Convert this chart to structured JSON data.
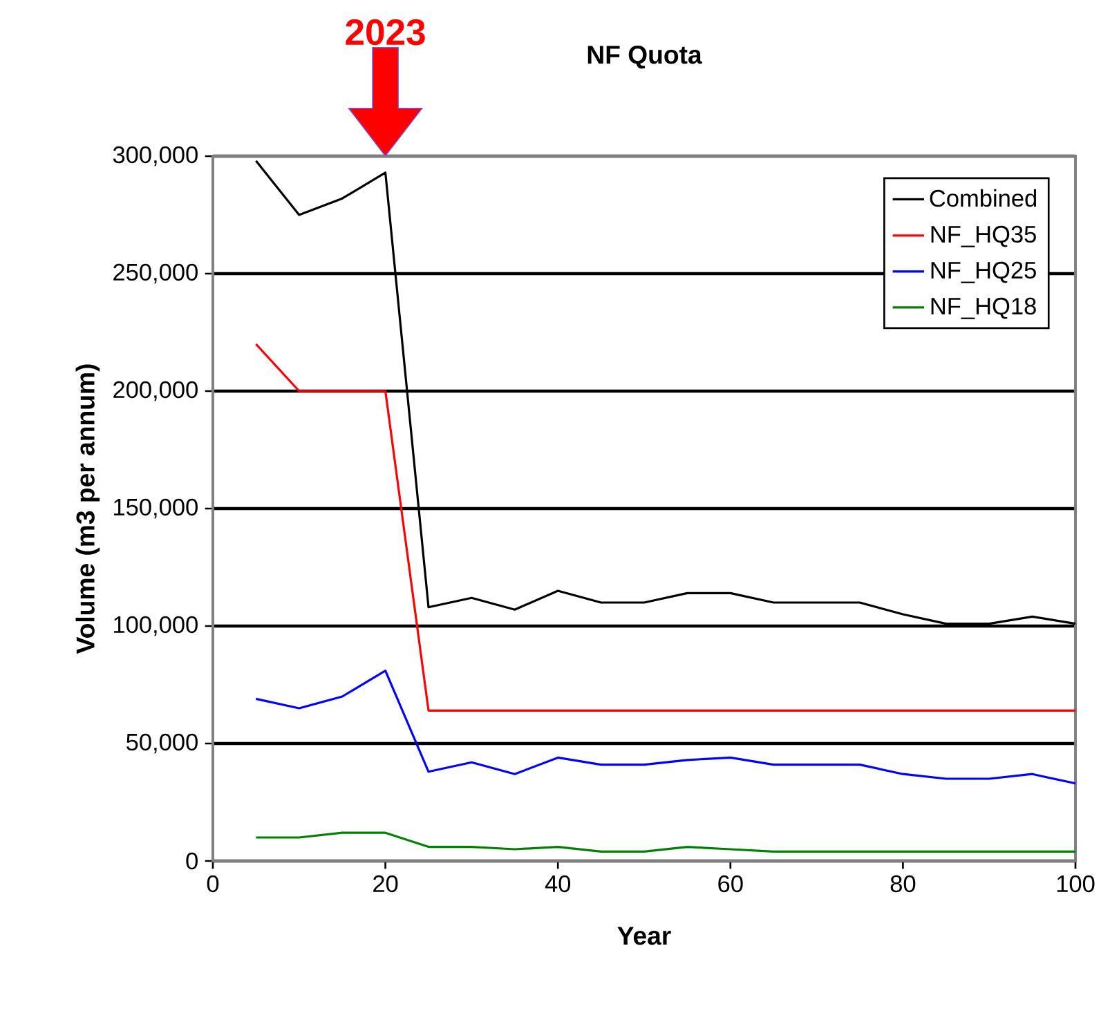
{
  "chart_data": {
    "type": "line",
    "title": "NF Quota",
    "xlabel": "Year",
    "ylabel": "Volume (m3 per annum)",
    "x": [
      5,
      10,
      15,
      20,
      25,
      30,
      35,
      40,
      45,
      50,
      55,
      60,
      65,
      70,
      75,
      80,
      85,
      90,
      95,
      100
    ],
    "series": [
      {
        "name": "Combined",
        "color": "#000000",
        "values": [
          298000,
          275000,
          282000,
          293000,
          108000,
          112000,
          107000,
          115000,
          110000,
          110000,
          114000,
          114000,
          110000,
          110000,
          110000,
          105000,
          101000,
          101000,
          104000,
          101000
        ]
      },
      {
        "name": "NF_HQ35",
        "color": "#ff0000",
        "values": [
          220000,
          200000,
          200000,
          200000,
          64000,
          64000,
          64000,
          64000,
          64000,
          64000,
          64000,
          64000,
          64000,
          64000,
          64000,
          64000,
          64000,
          64000,
          64000,
          64000
        ]
      },
      {
        "name": "NF_HQ25",
        "color": "#0000ff",
        "values": [
          69000,
          65000,
          70000,
          81000,
          38000,
          42000,
          37000,
          44000,
          41000,
          41000,
          43000,
          44000,
          41000,
          41000,
          41000,
          37000,
          35000,
          35000,
          37000,
          33000
        ]
      },
      {
        "name": "NF_HQ18",
        "color": "#008000",
        "values": [
          10000,
          10000,
          12000,
          12000,
          6000,
          6000,
          5000,
          6000,
          4000,
          4000,
          6000,
          5000,
          4000,
          4000,
          4000,
          4000,
          4000,
          4000,
          4000,
          4000
        ]
      }
    ],
    "xlim": [
      0,
      100
    ],
    "xticks": [
      0,
      20,
      40,
      60,
      80,
      100
    ],
    "ylim": [
      0,
      300000
    ],
    "yticks": [
      {
        "value": 0,
        "label": "0"
      },
      {
        "value": 50000,
        "label": "50,000"
      },
      {
        "value": 100000,
        "label": "100,000"
      },
      {
        "value": 150000,
        "label": "150,000"
      },
      {
        "value": 200000,
        "label": "200,000"
      },
      {
        "value": 250000,
        "label": "250,000"
      },
      {
        "value": 300000,
        "label": "300,000"
      }
    ],
    "grid": "y",
    "legend": "top right",
    "marker": "none",
    "line_style": "solid",
    "annotations": [
      "2023"
    ]
  }
}
